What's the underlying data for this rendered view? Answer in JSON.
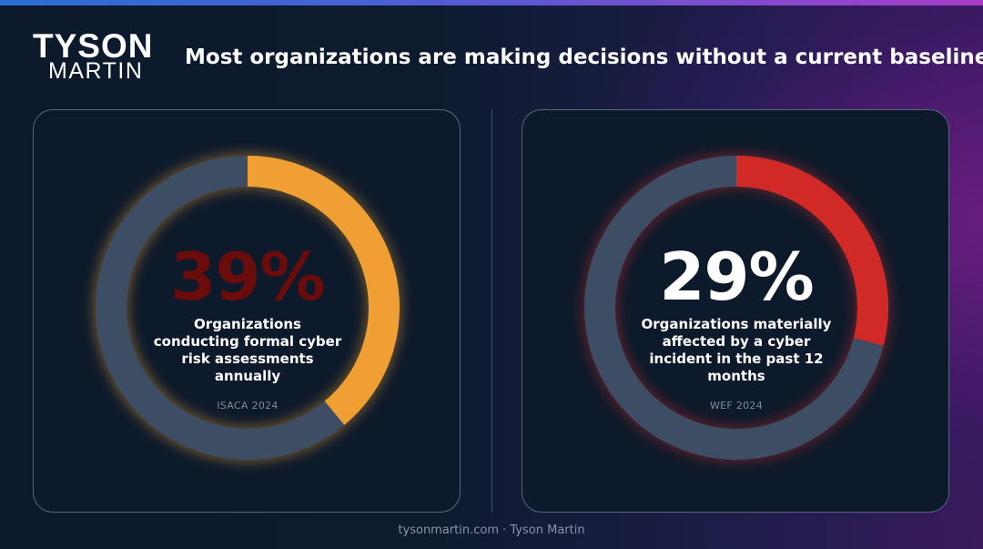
{
  "brand": {
    "logo_line1": "TYSON",
    "logo_line2": "MARTIN"
  },
  "headline": "Most organizations are making decisions without a current baseline.",
  "footer": "tysonmartin.com · Tyson Martin",
  "colors": {
    "ring_track": "#3d4d63",
    "left_accent": "#f0a033",
    "right_accent": "#d12a26",
    "left_number": "#6a0c0c",
    "right_number": "#ffffff"
  },
  "chart_data": [
    {
      "type": "pie",
      "style": "donut",
      "value": 39,
      "value_label": "39%",
      "description": "Organizations conducting formal cyber risk assessments annually",
      "source": "ISACA 2024",
      "accent": "#f0a033",
      "number_color": "#6a0c0c"
    },
    {
      "type": "pie",
      "style": "donut",
      "value": 29,
      "value_label": "29%",
      "description": "Organizations materially affected by a cyber incident in the past 12 months",
      "source": "WEF 2024",
      "accent": "#d12a26",
      "number_color": "#ffffff"
    }
  ]
}
